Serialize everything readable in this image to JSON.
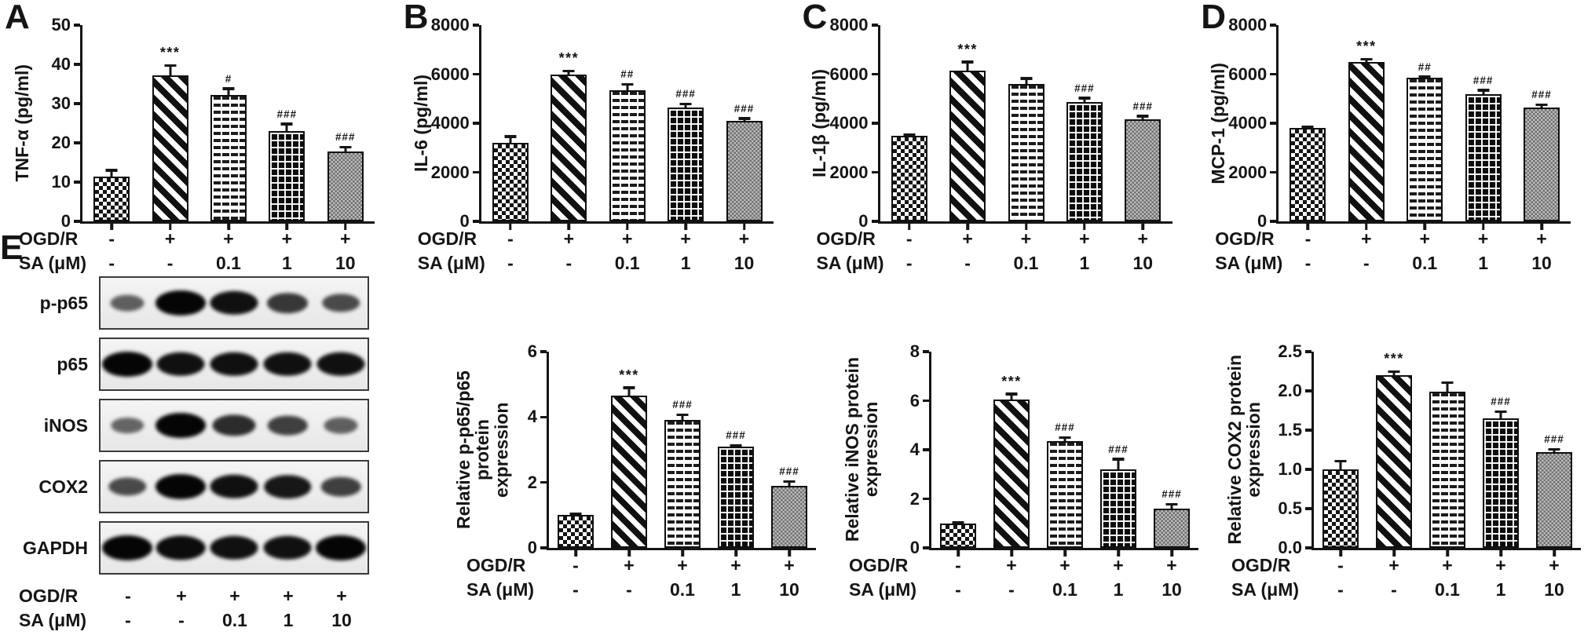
{
  "figure": {
    "panel_letters": [
      "A",
      "B",
      "C",
      "D",
      "E"
    ],
    "bar_patterns": [
      "checkerboard",
      "diagonal-stripes",
      "dashed-brick",
      "black-grid",
      "gray-dots"
    ],
    "colors": {
      "ink": "#151515",
      "bar_dark": "#111111",
      "bar_light": "#ffffff",
      "bar_gray": "#8f8f8f",
      "background": "#ffffff"
    }
  },
  "chart_data": [
    {
      "panel": "A",
      "type": "bar",
      "ylabel": "TNF-α (pg/ml)",
      "ylim": [
        0,
        50
      ],
      "yticks": [
        "0",
        "10",
        "20",
        "30",
        "40",
        "50"
      ],
      "values": [
        11.5,
        37.3,
        32.2,
        23.0,
        17.8
      ],
      "errors": [
        1.8,
        2.7,
        1.9,
        2.1,
        1.4
      ],
      "sig": [
        null,
        "***",
        "#",
        "###",
        "###"
      ],
      "x_rows": [
        {
          "label": "OGD/R",
          "values": [
            "-",
            "+",
            "+",
            "+",
            "+"
          ]
        },
        {
          "label": "SA (μM)",
          "values": [
            "-",
            "-",
            "0.1",
            "1",
            "10"
          ]
        }
      ]
    },
    {
      "panel": "B",
      "type": "bar",
      "ylabel": "IL-6 (pg/ml)",
      "ylim": [
        0,
        8000
      ],
      "yticks": [
        "0",
        "2000",
        "4000",
        "6000",
        "8000"
      ],
      "values": [
        3200,
        6000,
        5350,
        4650,
        4100
      ],
      "errors": [
        290,
        170,
        280,
        170,
        130
      ],
      "sig": [
        null,
        "***",
        "##",
        "###",
        "###"
      ],
      "x_rows": [
        {
          "label": "OGD/R",
          "values": [
            "-",
            "+",
            "+",
            "+",
            "+"
          ]
        },
        {
          "label": "SA (μM)",
          "values": [
            "-",
            "-",
            "0.1",
            "1",
            "10"
          ]
        }
      ]
    },
    {
      "panel": "C",
      "type": "bar",
      "ylabel": "IL-1β (pg/ml)",
      "ylim": [
        0,
        8000
      ],
      "yticks": [
        "0",
        "2000",
        "4000",
        "6000",
        "8000"
      ],
      "values": [
        3480,
        6150,
        5600,
        4850,
        4150
      ],
      "errors": [
        90,
        380,
        270,
        220,
        180
      ],
      "sig": [
        null,
        "***",
        null,
        "###",
        "###"
      ],
      "x_rows": [
        {
          "label": "OGD/R",
          "values": [
            "-",
            "+",
            "+",
            "+",
            "+"
          ]
        },
        {
          "label": "SA (μM)",
          "values": [
            "-",
            "-",
            "0.1",
            "1",
            "10"
          ]
        }
      ]
    },
    {
      "panel": "D",
      "type": "bar",
      "ylabel": "MCP-1 (pg/ml)",
      "ylim": [
        0,
        8000
      ],
      "yticks": [
        "0",
        "2000",
        "4000",
        "6000",
        "8000"
      ],
      "values": [
        3800,
        6500,
        5850,
        5200,
        4650
      ],
      "errors": [
        80,
        150,
        80,
        190,
        150
      ],
      "sig": [
        null,
        "***",
        "##",
        "###",
        "###"
      ],
      "x_rows": [
        {
          "label": "OGD/R",
          "values": [
            "-",
            "+",
            "+",
            "+",
            "+"
          ]
        },
        {
          "label": "SA (μM)",
          "values": [
            "-",
            "-",
            "0.1",
            "1",
            "10"
          ]
        }
      ]
    },
    {
      "panel": "E",
      "type": "bar",
      "ylabel": "Relative p-p65/p65 protein\nexpression",
      "ylim": [
        0,
        6
      ],
      "yticks": [
        "0",
        "2",
        "4",
        "6"
      ],
      "values": [
        1.0,
        4.65,
        3.92,
        3.1,
        1.9
      ],
      "errors": [
        0.07,
        0.28,
        0.18,
        0.06,
        0.16
      ],
      "sig": [
        null,
        "***",
        "###",
        "###",
        "###"
      ],
      "x_rows": [
        {
          "label": "OGD/R",
          "values": [
            "-",
            "+",
            "+",
            "+",
            "+"
          ]
        },
        {
          "label": "SA (μM)",
          "values": [
            "-",
            "-",
            "0.1",
            "1",
            "10"
          ]
        }
      ]
    },
    {
      "panel": "E",
      "type": "bar",
      "ylabel": "Relative iNOS protein\nexpression",
      "ylim": [
        0,
        8
      ],
      "yticks": [
        "0",
        "2",
        "4",
        "6",
        "8"
      ],
      "values": [
        1.0,
        6.05,
        4.35,
        3.2,
        1.6
      ],
      "errors": [
        0.08,
        0.27,
        0.18,
        0.45,
        0.22
      ],
      "sig": [
        null,
        "***",
        "###",
        "###",
        "###"
      ],
      "x_rows": [
        {
          "label": "OGD/R",
          "values": [
            "-",
            "+",
            "+",
            "+",
            "+"
          ]
        },
        {
          "label": "SA (μM)",
          "values": [
            "-",
            "-",
            "0.1",
            "1",
            "10"
          ]
        }
      ]
    },
    {
      "panel": "E",
      "type": "bar",
      "ylabel": "Relative COX2 protein\nexpression",
      "ylim": [
        0,
        2.5
      ],
      "yticks": [
        "0.0",
        "0.5",
        "1.0",
        "1.5",
        "2.0",
        "2.5"
      ],
      "values": [
        1.0,
        2.2,
        1.99,
        1.65,
        1.22
      ],
      "errors": [
        0.12,
        0.06,
        0.13,
        0.1,
        0.05
      ],
      "sig": [
        null,
        "***",
        null,
        "###",
        "###"
      ],
      "x_rows": [
        {
          "label": "OGD/R",
          "values": [
            "-",
            "+",
            "+",
            "+",
            "+"
          ]
        },
        {
          "label": "SA (μM)",
          "values": [
            "-",
            "-",
            "0.1",
            "1",
            "10"
          ]
        }
      ]
    }
  ],
  "western_blot": {
    "rows": [
      {
        "label": "p-p65",
        "bands": [
          0.3,
          1.0,
          0.9,
          0.6,
          0.45
        ]
      },
      {
        "label": "p65",
        "bands": [
          1.0,
          0.9,
          0.9,
          0.9,
          0.9
        ]
      },
      {
        "label": "iNOS",
        "bands": [
          0.25,
          1.0,
          0.7,
          0.55,
          0.3
        ]
      },
      {
        "label": "COX2",
        "bands": [
          0.45,
          1.0,
          0.9,
          0.85,
          0.55
        ]
      },
      {
        "label": "GAPDH",
        "bands": [
          1.0,
          0.95,
          0.9,
          0.9,
          1.0
        ]
      }
    ],
    "x_rows": [
      {
        "label": "OGD/R",
        "values": [
          "-",
          "+",
          "+",
          "+",
          "+"
        ]
      },
      {
        "label": "SA (μM)",
        "values": [
          "-",
          "-",
          "0.1",
          "1",
          "10"
        ]
      }
    ]
  }
}
